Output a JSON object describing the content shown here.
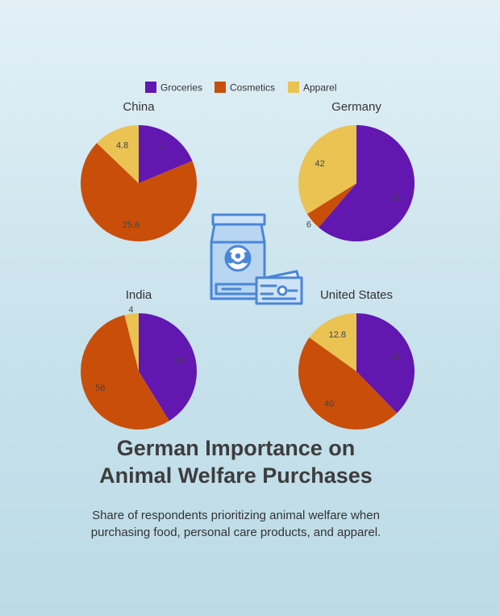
{
  "title": {
    "line1": "German Importance on",
    "line2": "Animal Welfare Purchases"
  },
  "subtitle": {
    "line1": "Share of respondents prioritizing animal welfare when",
    "line2": "purchasing food, personal care products, and apparel."
  },
  "icon": "pet-food-bag-with-credit-card-icon",
  "colors": {
    "groceries": "#6217b0",
    "cosmetics": "#c94e0a",
    "apparel": "#eac353"
  },
  "chart_data": {
    "type": "pie",
    "legend_position": "top-center",
    "legend": [
      "Groceries",
      "Cosmetics",
      "Apparel"
    ],
    "charts": [
      {
        "title": "China",
        "values": [
          7,
          25.6,
          4.8
        ],
        "labels": [
          "7",
          "25.6",
          "4.8"
        ]
      },
      {
        "title": "Germany",
        "values": [
          76,
          6,
          42
        ],
        "labels": [
          "76",
          "6",
          "42"
        ]
      },
      {
        "title": "India",
        "values": [
          42,
          56,
          4
        ],
        "labels": [
          "42",
          "56",
          "4"
        ]
      },
      {
        "title": "United States",
        "values": [
          32,
          40,
          12.8
        ],
        "labels": [
          "32",
          "40",
          "12.8"
        ]
      }
    ]
  }
}
